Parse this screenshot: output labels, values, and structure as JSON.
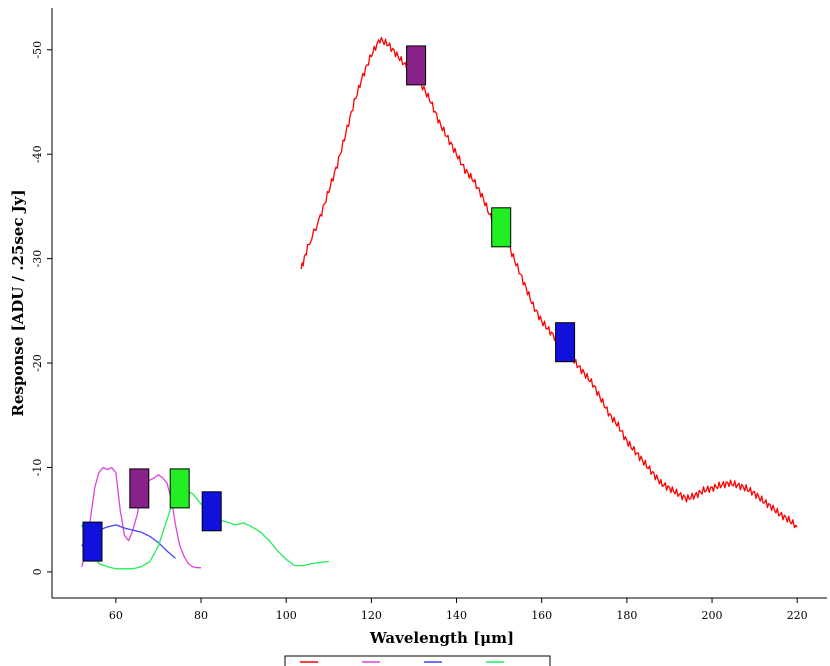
{
  "chart_data": {
    "type": "line",
    "title": "",
    "xlabel": "Wavelength [μm]",
    "ylabel": "Response [ADU / .25sec Jy]",
    "xlim": [
      45,
      227
    ],
    "ylim": [
      -2.5,
      54
    ],
    "x_ticks": [
      60,
      80,
      100,
      120,
      140,
      160,
      180,
      200,
      220
    ],
    "y_ticks": [
      0,
      10,
      20,
      30,
      40,
      50
    ],
    "y_tick_labels": [
      "0",
      "-10",
      "-20",
      "-30",
      "-40",
      "-50"
    ],
    "grid": false,
    "legend": {
      "placement": "bottom-center",
      "entries": [
        "",
        "",
        "",
        ""
      ]
    },
    "series": [
      {
        "color": "#ff0000",
        "x": [
          103.5,
          105,
          108,
          110,
          112,
          114,
          116,
          118,
          120,
          122,
          124,
          126,
          128,
          130,
          132,
          134,
          136,
          138,
          140,
          142,
          144,
          146,
          148,
          150,
          152,
          154,
          156,
          158,
          160,
          162,
          164,
          166,
          168,
          170,
          172,
          174,
          176,
          178,
          180,
          182,
          184,
          186,
          188,
          190,
          192,
          194,
          196,
          198,
          200,
          202,
          204,
          206,
          208,
          210,
          212,
          214,
          216,
          218,
          220
        ],
        "y": [
          29,
          31,
          34,
          36.5,
          39,
          42,
          45,
          47.5,
          49.5,
          51,
          50.5,
          49.5,
          48.5,
          47.5,
          46.5,
          45,
          43,
          41.5,
          40,
          38.5,
          37.5,
          36,
          34,
          33,
          31.5,
          29.5,
          27.5,
          25.5,
          24,
          23,
          22,
          21,
          20,
          19,
          18,
          16.5,
          15,
          14,
          12.5,
          11.5,
          10.5,
          9.5,
          8.5,
          8,
          7.5,
          7,
          7.3,
          7.8,
          8,
          8.3,
          8.5,
          8.3,
          8,
          7.5,
          6.8,
          6.2,
          5.5,
          5,
          4.3
        ]
      },
      {
        "color": "#dd44dd",
        "x": [
          52,
          53,
          54,
          55,
          56,
          57,
          58,
          59,
          60,
          61,
          62,
          63,
          64,
          65,
          66,
          67,
          68,
          69,
          70,
          71,
          72,
          73,
          74,
          75,
          76,
          77,
          78,
          79,
          80
        ],
        "y": [
          0.5,
          2,
          5,
          8,
          9.5,
          10,
          9.8,
          10,
          9.5,
          6,
          3.5,
          3,
          4,
          5.5,
          7.5,
          8.5,
          8.8,
          9,
          9.3,
          9,
          8.5,
          7,
          4.5,
          2.5,
          1.5,
          0.8,
          0.5,
          0.4,
          0.4
        ]
      },
      {
        "color": "#4444ff",
        "x": [
          52,
          54,
          56,
          58,
          60,
          62,
          64,
          66,
          68,
          70,
          72,
          74
        ],
        "y": [
          2.5,
          3.5,
          4,
          4.3,
          4.5,
          4.2,
          4,
          3.8,
          3.4,
          2.8,
          2,
          1.3
        ]
      },
      {
        "color": "#22ee55",
        "x": [
          52,
          54,
          56,
          58,
          60,
          62,
          64,
          66,
          68,
          70,
          72,
          74,
          76,
          78,
          80,
          82,
          84,
          86,
          88,
          90,
          92,
          94,
          96,
          98,
          100,
          102,
          104,
          106,
          108,
          110
        ],
        "y": [
          4.5,
          2.5,
          0.8,
          0.5,
          0.3,
          0.3,
          0.3,
          0.5,
          1,
          2.5,
          5,
          7.5,
          7.8,
          7.5,
          6.5,
          5.5,
          5,
          4.8,
          4.5,
          4.7,
          4.3,
          3.8,
          3,
          2,
          1.2,
          0.6,
          0.6,
          0.8,
          0.9,
          1
        ]
      }
    ],
    "markers": [
      {
        "x": 130.5,
        "y": 48.5,
        "color": "#882288"
      },
      {
        "x": 150.5,
        "y": 33,
        "color": "#22ee22"
      },
      {
        "x": 165.5,
        "y": 22,
        "color": "#1111dd"
      },
      {
        "x": 65.5,
        "y": 8,
        "color": "#882288"
      },
      {
        "x": 75,
        "y": 8,
        "color": "#22ee22"
      },
      {
        "x": 82.5,
        "y": 5.8,
        "color": "#1111dd"
      },
      {
        "x": 54.5,
        "y": 2.9,
        "color": "#1111dd"
      }
    ]
  }
}
